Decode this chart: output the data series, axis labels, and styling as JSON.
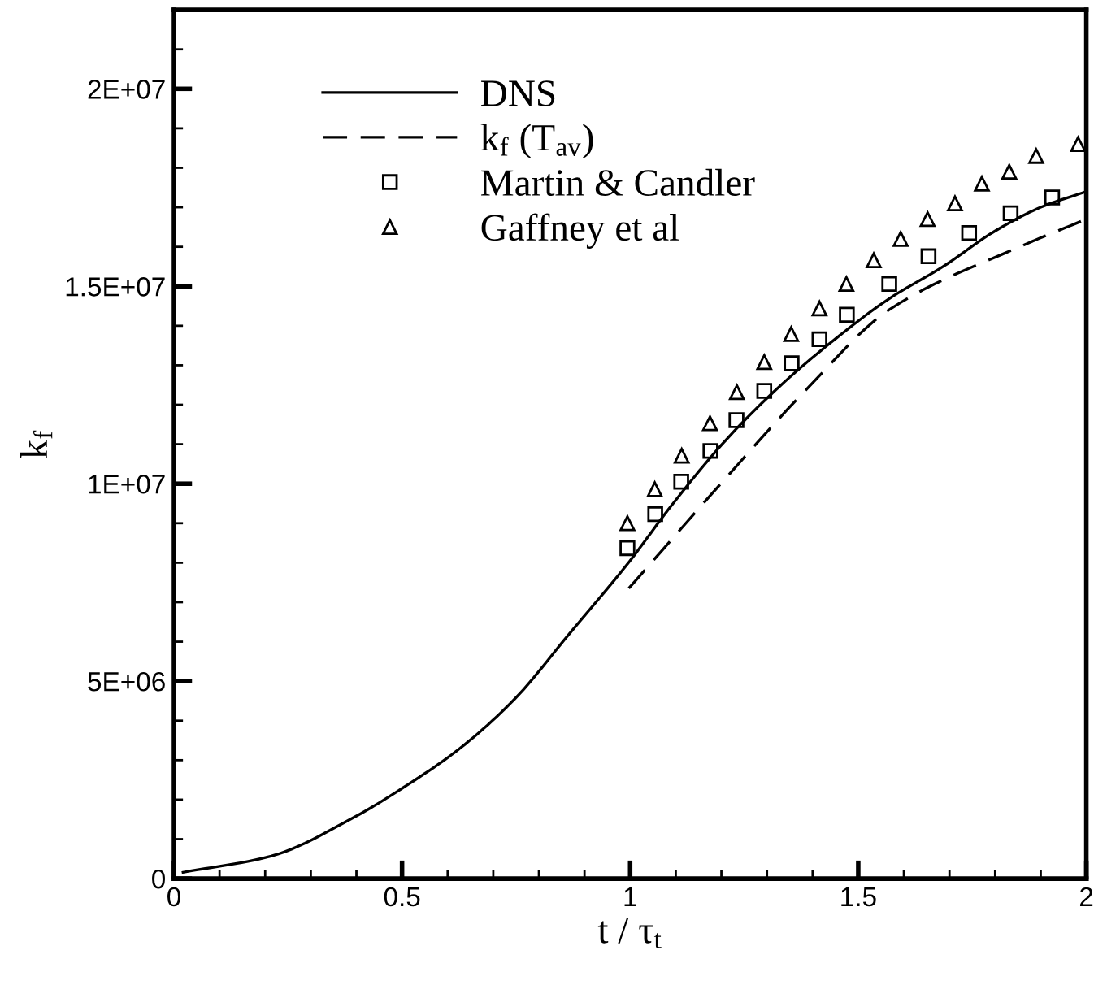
{
  "chart_data": {
    "type": "line",
    "xlabel": "t / τ$_{t}$",
    "ylabel": "k$_{f}$",
    "xlim": [
      0,
      2
    ],
    "ylim": [
      0,
      22000000
    ],
    "xticks": [
      0,
      0.5,
      1,
      1.5,
      2
    ],
    "yticks": [
      0,
      {
        "value": 5000000,
        "label": "5E+06"
      },
      {
        "value": 10000000,
        "label": "1E+07"
      },
      {
        "value": 15000000,
        "label": "1.5E+07"
      },
      {
        "value": 20000000,
        "label": "2E+07"
      }
    ],
    "grid": false,
    "legend": "top",
    "series": [
      {
        "name": "DNS",
        "line_style": "solid",
        "marker": "none",
        "color": "#000000",
        "x": [
          0.02,
          0.213,
          0.391,
          0.51,
          0.628,
          0.747,
          0.866,
          0.999,
          1.092,
          1.211,
          1.329,
          1.448,
          1.567,
          1.686,
          1.8,
          1.9,
          2.0
        ],
        "values": [
          160000,
          570000,
          1530000,
          2360000,
          3310000,
          4550000,
          6190000,
          8040000,
          9470000,
          11120000,
          12480000,
          13650000,
          14680000,
          15500000,
          16400000,
          17000000,
          17400000
        ]
      },
      {
        "name": "k$_{f}$ (T$_{av}$)",
        "line_style": "dashed",
        "marker": "none",
        "color": "#000000",
        "x": [
          0.997,
          1.211,
          1.389,
          1.567,
          1.864,
          2.0
        ],
        "values": [
          7350000,
          10160000,
          12420000,
          14400000,
          16050000,
          16700000
        ]
      },
      {
        "name": "Martin & Candler",
        "type": "scatter",
        "marker": "square",
        "color": "#000000",
        "x": [
          0.994,
          1.055,
          1.112,
          1.176,
          1.233,
          1.294,
          1.354,
          1.415,
          1.475,
          1.568,
          1.654,
          1.743,
          1.834,
          1.925
        ],
        "values": [
          8370000,
          9230000,
          10050000,
          10830000,
          11610000,
          12350000,
          13050000,
          13660000,
          14280000,
          15060000,
          15760000,
          16350000,
          16850000,
          17250000
        ]
      },
      {
        "name": "Gaffney et al",
        "type": "scatter",
        "marker": "triangle",
        "color": "#000000",
        "x": [
          0.994,
          1.054,
          1.113,
          1.175,
          1.234,
          1.294,
          1.353,
          1.415,
          1.474,
          1.534,
          1.593,
          1.652,
          1.712,
          1.771,
          1.831,
          1.89,
          1.982
        ],
        "values": [
          9000000,
          9860000,
          10710000,
          11530000,
          12320000,
          13080000,
          13790000,
          14440000,
          15060000,
          15660000,
          16200000,
          16700000,
          17100000,
          17600000,
          17900000,
          18300000,
          18600000
        ]
      }
    ]
  }
}
